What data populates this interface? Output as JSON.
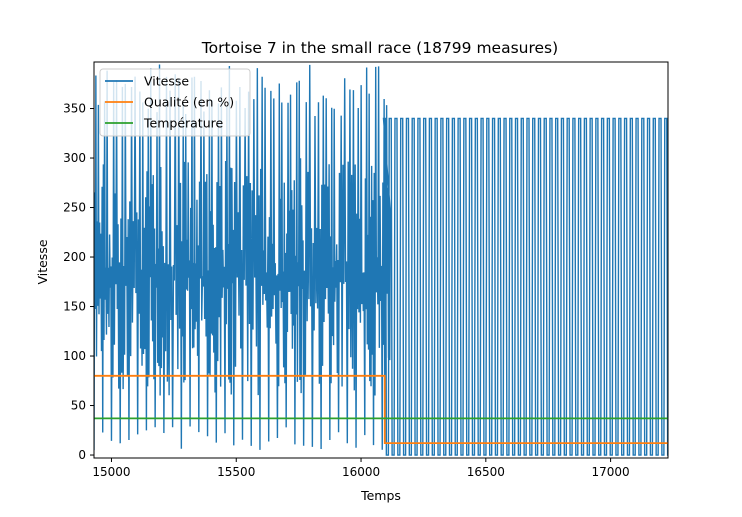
{
  "chart_data": {
    "type": "line",
    "title": "Tortoise 7 in the small race (18799 measures)",
    "xlabel": "Temps",
    "ylabel": "Vitesse",
    "xlim": [
      14930,
      17230
    ],
    "ylim": [
      -3,
      397
    ],
    "x_ticks": [
      15000,
      15500,
      16000,
      16500,
      17000
    ],
    "y_ticks": [
      0,
      50,
      100,
      150,
      200,
      250,
      300,
      350
    ],
    "legend_location": "top-left",
    "series": [
      {
        "name": "Vitesse",
        "color": "#1f77b4",
        "segments": [
          {
            "description": "dense oscillation",
            "x_range": [
              14930,
              16090
            ],
            "cycle_period": 35,
            "min": 0,
            "max": 395,
            "typical_low": 25,
            "typical_high": 340
          },
          {
            "description": "regular oscillation",
            "x_range": [
              16090,
              17225
            ],
            "cycle_period": 23,
            "min": 0,
            "max": 340
          }
        ],
        "end_value": 200
      },
      {
        "name": "Qualité (en %)",
        "color": "#ff7f0e",
        "steps": [
          {
            "x_range": [
              14930,
              16095
            ],
            "value": 80
          },
          {
            "x_range": [
              16095,
              17230
            ],
            "value": 12
          }
        ]
      },
      {
        "name": "Température",
        "color": "#2ca02c",
        "steps": [
          {
            "x_range": [
              14930,
              17230
            ],
            "value": 37
          }
        ]
      }
    ]
  }
}
